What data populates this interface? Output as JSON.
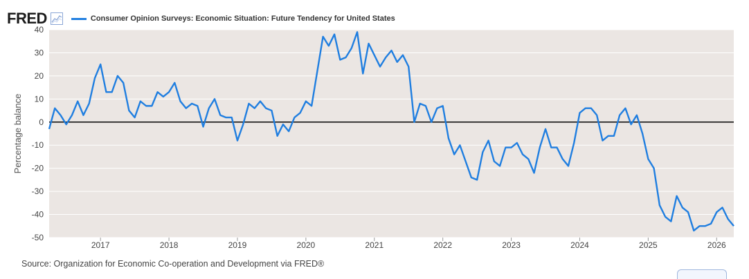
{
  "brand": {
    "logo_text": "FRED",
    "icon": "line-chart-icon"
  },
  "source_text": "Source: Organization for Economic Co-operation and Development via FRED®",
  "colors": {
    "series": "#1f7ee0",
    "plot_bg": "#ebe6e3",
    "grid": "#ffffff",
    "zero_line": "#000000",
    "text": "#444444"
  },
  "chart_data": {
    "type": "line",
    "ylabel": "Percentage balance",
    "ylim": [
      -50,
      40
    ],
    "yticks": [
      40,
      30,
      20,
      10,
      0,
      -10,
      -20,
      -30,
      -40,
      -50
    ],
    "xlim": [
      "2016-04",
      "2026-04"
    ],
    "xticks": [
      "2017",
      "2018",
      "2019",
      "2020",
      "2021",
      "2022",
      "2023",
      "2024",
      "2025",
      "2026"
    ],
    "grid": true,
    "legend_position": "top-left",
    "zero_line": true,
    "series": [
      {
        "name": "Consumer Opinion Surveys: Economic Situation: Future Tendency for United States",
        "frequency": "monthly",
        "start": "2016-04",
        "values": [
          -3,
          6,
          3,
          -1,
          3,
          9,
          3,
          8,
          19,
          25,
          13,
          13,
          20,
          17,
          5,
          2,
          9,
          7,
          7,
          13,
          11,
          13,
          17,
          9,
          6,
          8,
          7,
          -2,
          6,
          10,
          3,
          2,
          2,
          -8,
          -1,
          8,
          6,
          9,
          6,
          5,
          -6,
          -1,
          -4,
          2,
          4,
          9,
          7,
          22,
          37,
          33,
          38,
          27,
          28,
          32,
          39,
          21,
          34,
          29,
          24,
          28,
          31,
          26,
          29,
          24,
          0,
          8,
          7,
          0,
          6,
          7,
          -7,
          -14,
          -10,
          -17,
          -24,
          -25,
          -13,
          -8,
          -17,
          -19,
          -11,
          -11,
          -9,
          -14,
          -16,
          -22,
          -11,
          -3,
          -11,
          -11,
          -16,
          -19,
          -9,
          4,
          6,
          6,
          3,
          -8,
          -6,
          -6,
          3,
          6,
          -1,
          3,
          -5,
          -16,
          -20,
          -36,
          -41,
          -43,
          -32,
          -37,
          -39,
          -47,
          -45,
          -45,
          -44,
          -39,
          -37,
          -42,
          -45
        ]
      }
    ]
  }
}
